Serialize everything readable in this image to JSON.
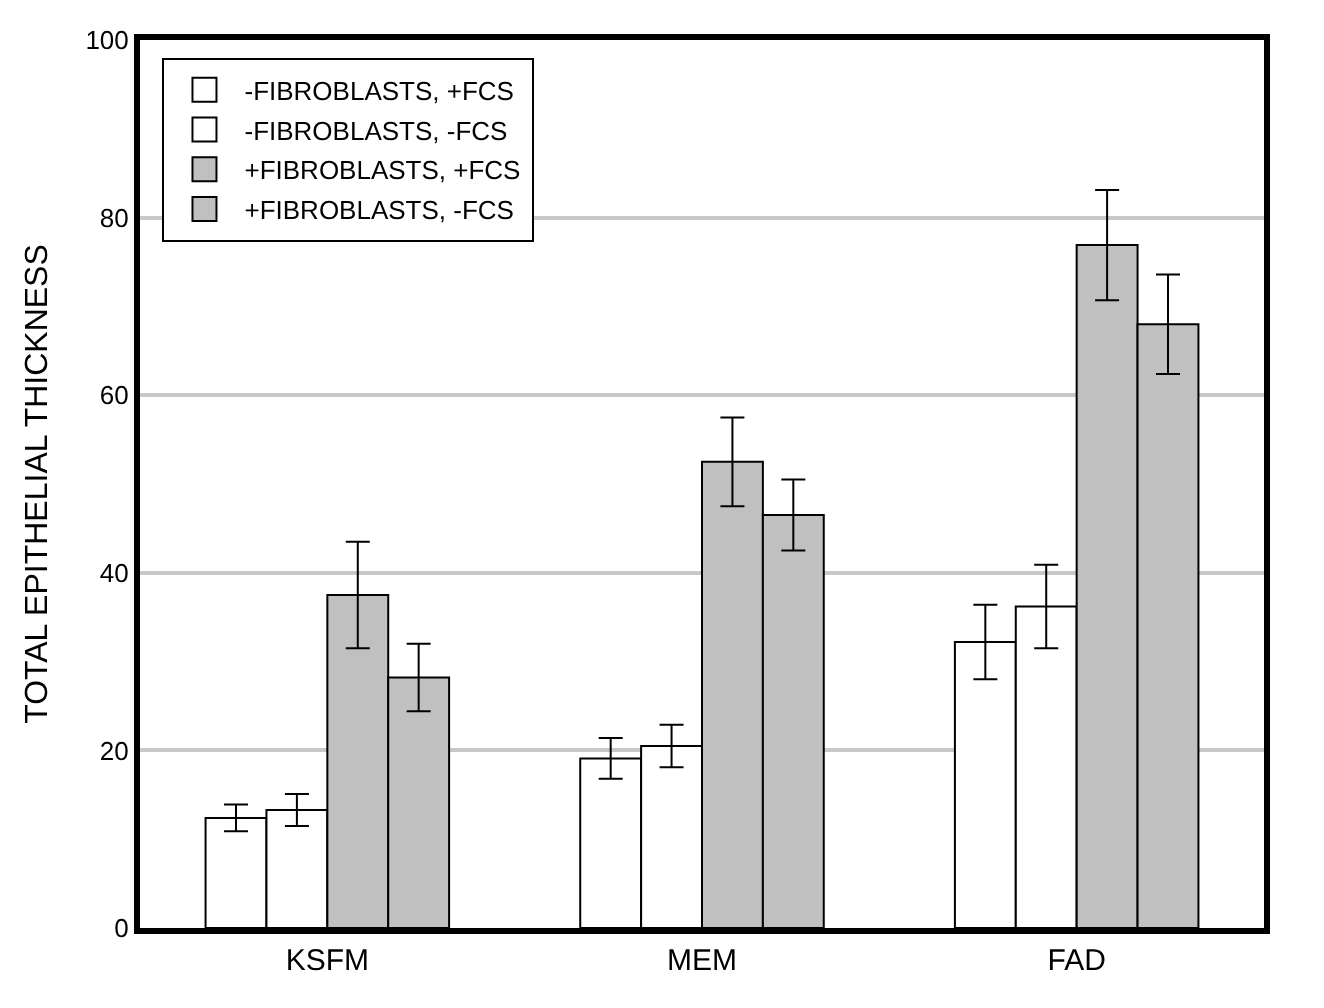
{
  "chart_data": {
    "type": "bar",
    "ylabel": "TOTAL EPITHELIAL THICKNESS",
    "categories": [
      "KSFM",
      "MEM",
      "FAD"
    ],
    "series": [
      {
        "name": "-FIBROBLASTS, +FCS",
        "color": "#ffffff",
        "values": [
          12.4,
          19.1,
          32.2
        ],
        "errors": [
          1.5,
          2.3,
          4.2
        ]
      },
      {
        "name": "-FIBROBLASTS, -FCS",
        "color": "#ffffff",
        "values": [
          13.3,
          20.5,
          36.2
        ],
        "errors": [
          1.8,
          2.4,
          4.7
        ]
      },
      {
        "name": "+FIBROBLASTS, +FCS",
        "color": "#c0c0c0",
        "values": [
          37.5,
          52.5,
          76.9
        ],
        "errors": [
          6.0,
          5.0,
          6.2
        ]
      },
      {
        "name": "+FIBROBLASTS, -FCS",
        "color": "#c0c0c0",
        "values": [
          28.2,
          46.5,
          68.0
        ],
        "errors": [
          3.8,
          4.0,
          5.6
        ]
      }
    ],
    "ylim": [
      0,
      100
    ],
    "yticks": [
      0,
      20,
      40,
      60,
      80,
      100
    ],
    "grid": "y",
    "legend": "top left"
  }
}
